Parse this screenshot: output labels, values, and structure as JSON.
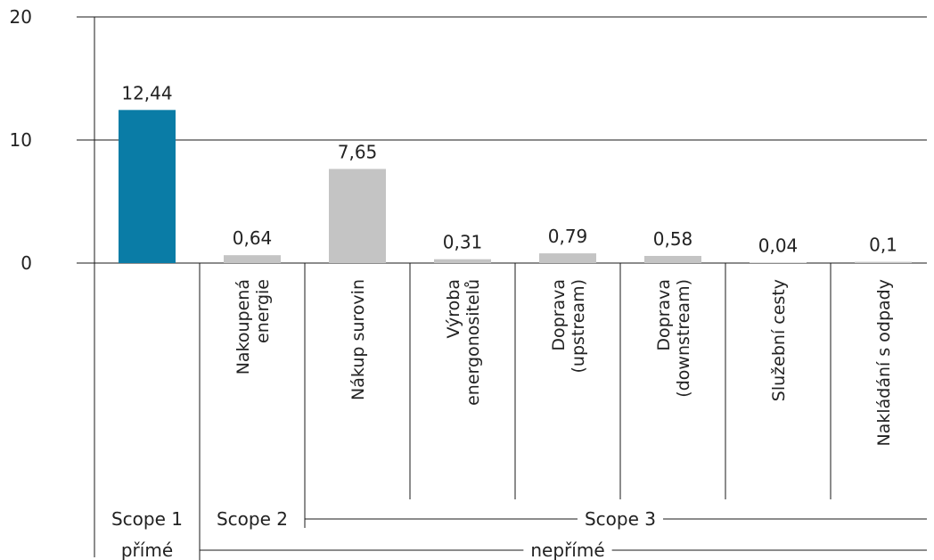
{
  "chart_data": {
    "type": "bar",
    "categories": [
      "",
      "Nakoupená energie",
      "Nákup surovin",
      "Výroba energonositelů",
      "Doprava (upstream)",
      "Doprava (downstream)",
      "Služební cesty",
      "Nakládání s odpady"
    ],
    "category_lines": [
      [],
      [
        "Nakoupená",
        "energie"
      ],
      [
        "Nákup surovin"
      ],
      [
        "Výroba",
        "energonositelů"
      ],
      [
        "Doprava",
        "(upstream)"
      ],
      [
        "Doprava",
        "(downstream)"
      ],
      [
        "Služební cesty"
      ],
      [
        "Nakládání s odpady"
      ]
    ],
    "values": [
      12.44,
      0.64,
      7.65,
      0.31,
      0.79,
      0.58,
      0.04,
      0.1
    ],
    "value_labels": [
      "12,44",
      "0,64",
      "7,65",
      "0,31",
      "0,79",
      "0,58",
      "0,04",
      "0,1"
    ],
    "bar_colors": [
      "#0a7ca6",
      "#c4c4c4",
      "#c4c4c4",
      "#c4c4c4",
      "#c4c4c4",
      "#c4c4c4",
      "#c4c4c4",
      "#c4c4c4"
    ],
    "ylim": [
      0,
      20
    ],
    "yticks": [
      "0",
      "10",
      "20"
    ],
    "grid": true,
    "groups_level1": [
      {
        "label": "Scope 1",
        "categories": [
          0
        ]
      },
      {
        "label": "Scope 2",
        "categories": [
          1
        ]
      },
      {
        "label": "Scope 3",
        "categories": [
          2,
          3,
          4,
          5,
          6,
          7
        ]
      }
    ],
    "groups_level2": [
      {
        "label": "přímé",
        "categories": [
          0
        ]
      },
      {
        "label": "nepřímé",
        "categories": [
          1,
          2,
          3,
          4,
          5,
          6,
          7
        ]
      }
    ]
  }
}
